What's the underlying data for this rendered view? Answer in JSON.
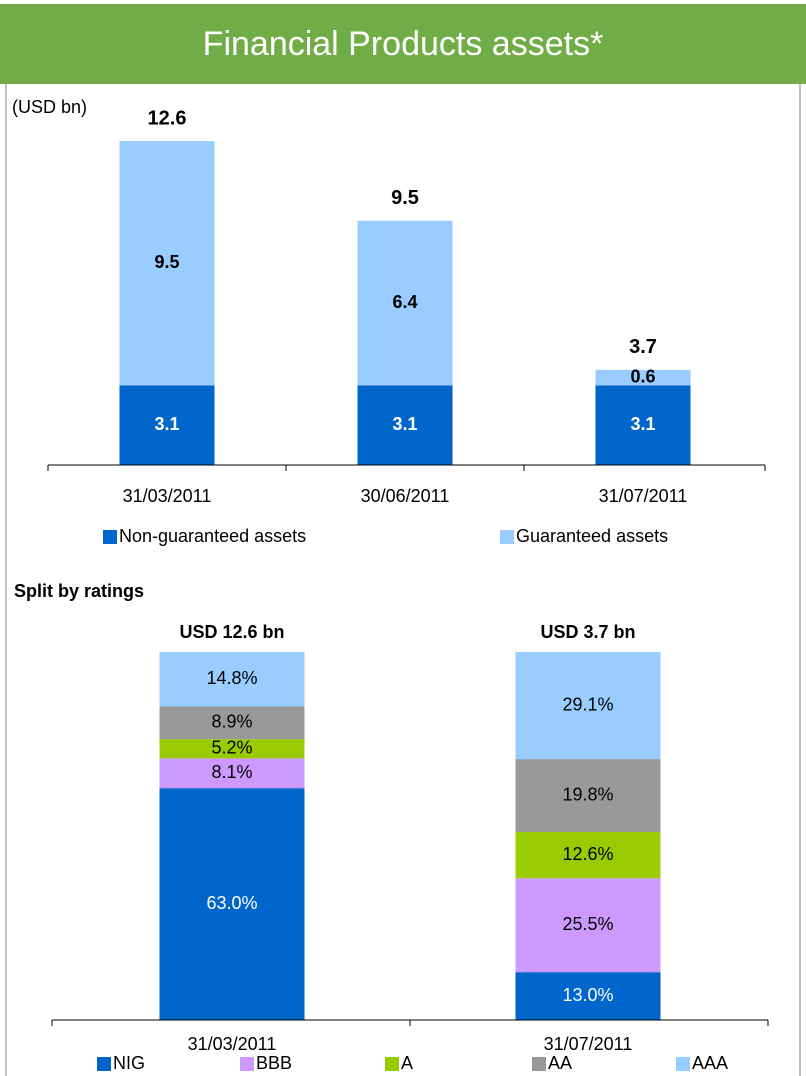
{
  "title": "Financial Products assets*",
  "chart_data": [
    {
      "type": "stacked_bar",
      "unit_label": "(USD bn)",
      "categories": [
        "31/03/2011",
        "30/06/2011",
        "31/07/2011"
      ],
      "totals": [
        12.6,
        9.5,
        3.7
      ],
      "series": [
        {
          "name": "Non-guaranteed assets",
          "color": "#0066cc",
          "label_color": "#ffffff",
          "values": [
            3.1,
            3.1,
            3.1
          ]
        },
        {
          "name": "Guaranteed assets",
          "color": "#99ccff",
          "label_color": "#000000",
          "values": [
            9.5,
            6.4,
            0.6
          ]
        }
      ]
    },
    {
      "type": "stacked_bar",
      "title": "Split by ratings",
      "categories": [
        "31/03/2011",
        "31/07/2011"
      ],
      "category_headers": [
        "USD 12.6 bn",
        "USD 3.7 bn"
      ],
      "series": [
        {
          "name": "NIG",
          "color": "#0066cc",
          "label_color": "#ffffff",
          "values": [
            63.0,
            13.0
          ],
          "value_labels": [
            "63.0%",
            "13.0%"
          ]
        },
        {
          "name": "BBB",
          "color": "#cc99ff",
          "label_color": "#000000",
          "values": [
            8.1,
            25.5
          ],
          "value_labels": [
            "8.1%",
            "25.5%"
          ]
        },
        {
          "name": "A",
          "color": "#99cc00",
          "label_color": "#000000",
          "values": [
            5.2,
            12.6
          ],
          "value_labels": [
            "5.2%",
            "12.6%"
          ]
        },
        {
          "name": "AA",
          "color": "#999999",
          "label_color": "#000000",
          "values": [
            8.9,
            19.8
          ],
          "value_labels": [
            "8.9%",
            "19.8%"
          ]
        },
        {
          "name": "AAA",
          "color": "#99ccff",
          "label_color": "#000000",
          "values": [
            14.8,
            29.1
          ],
          "value_labels": [
            "14.8%",
            "29.1%"
          ]
        }
      ]
    }
  ]
}
